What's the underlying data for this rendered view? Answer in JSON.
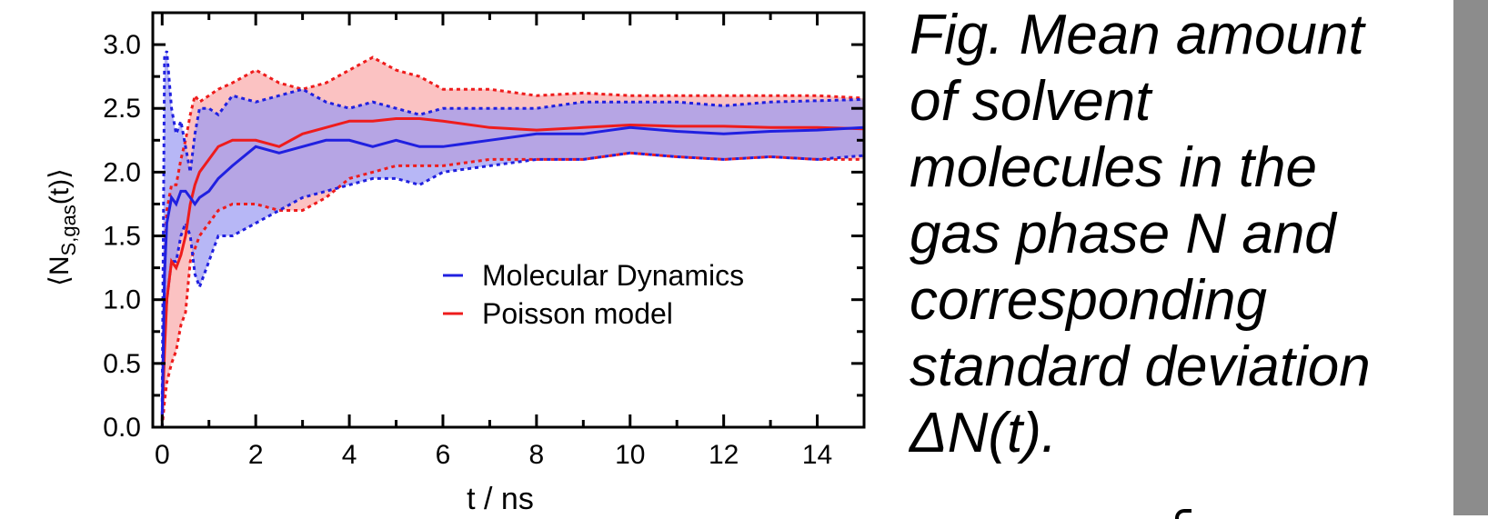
{
  "chart_data": {
    "type": "line",
    "xlabel": "t / ns",
    "ylabel": "⟨N_S,gas(t)⟩",
    "ylabel_parts": {
      "open": "⟨N",
      "sub": "S,gas",
      "close": "(t)⟩"
    },
    "xlim": [
      -0.2,
      15
    ],
    "ylim": [
      0,
      3.25
    ],
    "xticks": [
      0,
      2,
      4,
      6,
      8,
      10,
      12,
      14
    ],
    "xtick_labels": [
      "0",
      "2",
      "4",
      "6",
      "8",
      "10",
      "12",
      "14"
    ],
    "yticks": [
      0,
      0.5,
      1,
      1.5,
      2,
      2.5,
      3
    ],
    "ytick_labels": [
      "0.0",
      "0.5",
      "1.0",
      "1.5",
      "2.0",
      "2.5",
      "3.0"
    ],
    "legend_position": "center-right",
    "series": [
      {
        "name": "Molecular Dynamics",
        "color": "#2020e0",
        "fill": "#9999f2",
        "x": [
          0,
          0.05,
          0.1,
          0.2,
          0.3,
          0.4,
          0.5,
          0.6,
          0.7,
          0.8,
          1.0,
          1.2,
          1.5,
          2.0,
          2.5,
          3.0,
          3.5,
          4.0,
          4.5,
          5.0,
          5.5,
          6.0,
          7.0,
          8.0,
          9.0,
          10.0,
          11.0,
          12.0,
          13.0,
          14.0,
          15.0
        ],
        "mean": [
          0.1,
          1.2,
          1.6,
          1.8,
          1.75,
          1.85,
          1.85,
          1.8,
          1.75,
          1.8,
          1.85,
          1.95,
          2.05,
          2.2,
          2.15,
          2.2,
          2.25,
          2.25,
          2.2,
          2.25,
          2.2,
          2.2,
          2.25,
          2.3,
          2.3,
          2.35,
          2.32,
          2.3,
          2.32,
          2.33,
          2.35
        ],
        "upper": [
          0.2,
          2.9,
          2.95,
          2.5,
          2.3,
          2.4,
          2.2,
          2.0,
          2.3,
          2.5,
          2.5,
          2.45,
          2.6,
          2.55,
          2.6,
          2.65,
          2.55,
          2.5,
          2.55,
          2.5,
          2.45,
          2.5,
          2.5,
          2.5,
          2.55,
          2.55,
          2.55,
          2.52,
          2.55,
          2.56,
          2.57
        ],
        "lower": [
          0.0,
          0.7,
          1.0,
          1.3,
          1.3,
          1.5,
          1.6,
          1.5,
          1.2,
          1.1,
          1.3,
          1.5,
          1.5,
          1.6,
          1.7,
          1.8,
          1.85,
          1.9,
          1.95,
          1.95,
          1.9,
          2.0,
          2.05,
          2.1,
          2.1,
          2.15,
          2.12,
          2.1,
          2.12,
          2.1,
          2.13
        ]
      },
      {
        "name": "Poisson model",
        "color": "#ee1c1c",
        "fill": "#f9a8a8",
        "x": [
          0,
          0.05,
          0.1,
          0.2,
          0.3,
          0.4,
          0.5,
          0.6,
          0.7,
          0.8,
          1.0,
          1.2,
          1.5,
          2.0,
          2.5,
          3.0,
          3.5,
          4.0,
          4.5,
          5.0,
          5.5,
          6.0,
          7.0,
          8.0,
          9.0,
          10.0,
          11.0,
          12.0,
          13.0,
          14.0,
          15.0
        ],
        "mean": [
          0.05,
          0.6,
          1.0,
          1.3,
          1.25,
          1.35,
          1.5,
          1.75,
          1.9,
          2.0,
          2.1,
          2.2,
          2.25,
          2.25,
          2.2,
          2.3,
          2.35,
          2.4,
          2.4,
          2.42,
          2.42,
          2.4,
          2.35,
          2.33,
          2.35,
          2.37,
          2.36,
          2.36,
          2.35,
          2.35,
          2.34
        ],
        "upper": [
          0.1,
          1.2,
          1.7,
          1.9,
          1.9,
          2.1,
          2.25,
          2.45,
          2.6,
          2.55,
          2.6,
          2.65,
          2.7,
          2.8,
          2.7,
          2.65,
          2.7,
          2.8,
          2.9,
          2.8,
          2.75,
          2.65,
          2.65,
          2.6,
          2.62,
          2.6,
          2.6,
          2.6,
          2.6,
          2.6,
          2.58
        ],
        "lower": [
          0.0,
          0.2,
          0.35,
          0.5,
          0.6,
          0.8,
          0.9,
          1.3,
          1.4,
          1.5,
          1.6,
          1.7,
          1.75,
          1.75,
          1.7,
          1.7,
          1.8,
          1.95,
          2.0,
          2.05,
          2.05,
          2.05,
          2.1,
          2.1,
          2.1,
          2.15,
          2.12,
          2.1,
          2.12,
          2.1,
          2.1
        ]
      }
    ]
  },
  "caption": {
    "lines": [
      "Fig. Mean amount",
      "of solvent",
      "molecules in the",
      "gas phase N and",
      "corresponding",
      "standard deviation",
      "ΔN(t)."
    ]
  },
  "colors": {
    "side_bar": "#8c8c8c"
  }
}
